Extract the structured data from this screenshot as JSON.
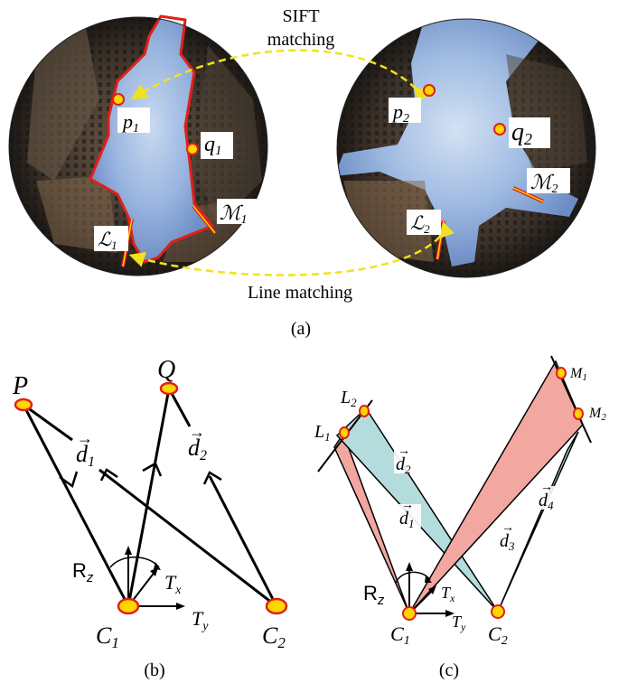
{
  "panel_a": {
    "caption": "(a)",
    "sift_line1": "SIFT",
    "sift_line2": "matching",
    "line_matching": "Line matching",
    "left_image": {
      "p": "p",
      "p_sub": "1",
      "q": "q",
      "q_sub": "1",
      "M": "ℳ",
      "M_sub": "1",
      "L": "ℒ",
      "L_sub": "1"
    },
    "right_image": {
      "p": "p",
      "p_sub": "2",
      "q": "q",
      "q_sub": "2",
      "M": "ℳ",
      "M_sub": "2",
      "L": "ℒ",
      "L_sub": "2"
    }
  },
  "panel_b": {
    "caption": "(b)",
    "P": "P",
    "Q": "Q",
    "d1": "d",
    "d1_sub": "1",
    "d2": "d",
    "d2_sub": "2",
    "Rz": "R",
    "Rz_sub": "z",
    "Tx": "T",
    "Tx_sub": "x",
    "Ty": "T",
    "Ty_sub": "y",
    "C1": "C",
    "C1_sub": "1",
    "C2": "C",
    "C2_sub": "2"
  },
  "panel_c": {
    "caption": "(c)",
    "L1": "L",
    "L1_sub": "1",
    "L2": "L",
    "L2_sub": "2",
    "M1": "M",
    "M1_sub": "1",
    "M2": "M",
    "M2_sub": "2",
    "d1": "d",
    "d1_sub": "1",
    "d2": "d",
    "d2_sub": "2",
    "d3": "d",
    "d3_sub": "3",
    "d4": "d",
    "d4_sub": "4",
    "Rz": "R",
    "Rz_sub": "z",
    "Tx": "T",
    "Tx_sub": "x",
    "Ty": "T",
    "Ty_sub": "y",
    "C1": "C",
    "C1_sub": "1",
    "C2": "C",
    "C2_sub": "2"
  },
  "colors": {
    "point_fill": "#ffd600",
    "point_stroke": "#e0201a",
    "match_arrow": "#f2e21a",
    "region_outline": "#e0201a",
    "triangle_red": "#f3a7a1",
    "triangle_blue": "#b4dcdc"
  }
}
